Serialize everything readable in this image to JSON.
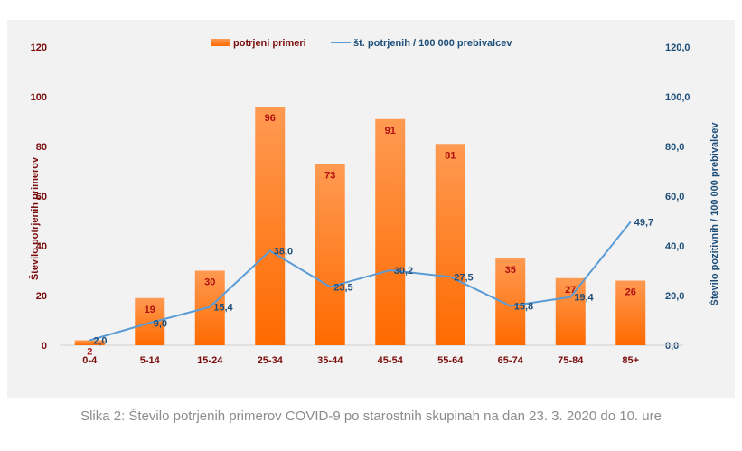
{
  "chart_data": {
    "type": "bar",
    "categories": [
      "0-4",
      "5-14",
      "15-24",
      "25-34",
      "35-44",
      "45-54",
      "55-64",
      "65-74",
      "75-84",
      "85+"
    ],
    "series": [
      {
        "name": "potrjeni primeri",
        "type": "bar",
        "axis": "left",
        "values": [
          2,
          19,
          30,
          96,
          73,
          91,
          81,
          35,
          27,
          26
        ],
        "labels": [
          "2",
          "19",
          "30",
          "96",
          "73",
          "91",
          "81",
          "35",
          "27",
          "26"
        ]
      },
      {
        "name": "št. potrjenih / 100 000 prebivalcev",
        "type": "line",
        "axis": "right",
        "values": [
          2.0,
          9.0,
          15.4,
          38.0,
          23.5,
          30.2,
          27.5,
          15.8,
          19.4,
          49.7
        ],
        "labels": [
          "2,0",
          "9,0",
          "15,4",
          "38,0",
          "23,5",
          "30,2",
          "27,5",
          "15,8",
          "19,4",
          "49,7"
        ]
      }
    ],
    "ylabel": "Število potrjenih  primerov",
    "ylabel_right": "Število pozitivnih  / 100 000 prebivalcev",
    "ylim": [
      0,
      120
    ],
    "ylim_right": [
      0,
      120
    ],
    "yticks": [
      "0",
      "20",
      "40",
      "60",
      "80",
      "100",
      "120"
    ],
    "yticks_right": [
      "0,0",
      "20,0",
      "40,0",
      "60,0",
      "80,0",
      "100,0",
      "120,0"
    ],
    "legend_position": "top",
    "grid": false,
    "colors": {
      "bar_top": "#ff9a52",
      "bar_bottom": "#ff6a00",
      "line": "#5b9bd5"
    }
  },
  "caption": "Slika 2: Število potrjenih primerov COVID-9 po starostnih skupinah na dan 23. 3. 2020 do 10. ure"
}
